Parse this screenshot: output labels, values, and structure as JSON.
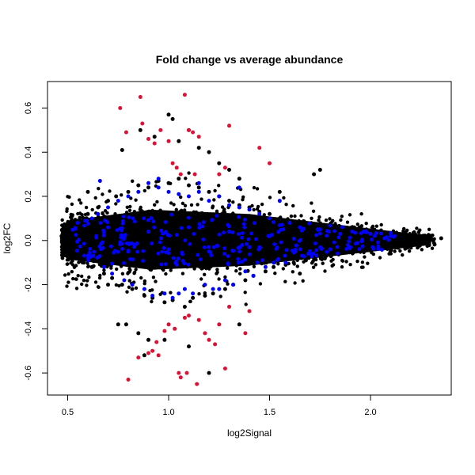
{
  "chart_data": {
    "type": "scatter",
    "title": "Fold change vs average abundance",
    "xlabel": "log2Signal",
    "ylabel": "log2FC",
    "xlim": [
      0.4,
      2.4
    ],
    "ylim": [
      -0.7,
      0.72
    ],
    "x_ticks": [
      0.5,
      1.0,
      1.5,
      2.0
    ],
    "x_tick_labels": [
      "0.5",
      "1.0",
      "1.5",
      "2.0"
    ],
    "y_ticks": [
      -0.6,
      -0.4,
      -0.2,
      0.0,
      0.2,
      0.4,
      0.6
    ],
    "y_tick_labels": [
      "-0.6",
      "-0.4",
      "-0.2",
      "0.0",
      "0.2",
      "0.4",
      "0.6"
    ],
    "grid": false,
    "series": [
      {
        "color": "#000000",
        "values_note_free": true,
        "x": [
          0.47,
          0.48,
          0.5,
          0.52,
          0.55,
          0.58,
          0.6,
          0.62,
          0.65,
          0.68,
          0.7,
          0.72,
          0.74,
          0.77,
          0.8,
          0.82,
          0.85,
          0.88,
          0.9,
          0.92,
          0.95,
          0.98,
          1.0,
          1.02,
          1.05,
          1.08,
          1.1,
          1.12,
          1.15,
          1.18,
          1.2,
          1.22,
          1.25,
          1.28,
          1.3,
          1.32,
          1.35,
          1.38,
          1.4,
          1.42,
          1.45,
          1.48,
          1.5,
          1.52,
          1.55,
          1.58,
          1.6,
          1.62,
          1.65,
          1.68,
          1.7,
          1.72,
          1.75,
          1.78,
          1.8,
          1.82,
          1.85,
          1.88,
          1.9,
          1.92,
          1.95,
          1.98,
          2.0,
          2.02,
          2.05,
          2.08,
          2.1,
          2.12,
          2.15,
          2.18,
          2.2,
          2.25,
          2.3,
          2.35,
          0.77,
          0.79,
          0.86,
          0.88,
          0.93,
          0.98,
          1.0,
          1.02,
          1.05,
          1.1,
          1.15,
          1.2,
          1.25,
          1.3,
          1.35,
          1.72,
          1.75,
          0.75,
          0.85,
          0.9,
          1.1,
          1.35,
          1.2,
          0.6,
          0.7,
          1.55,
          1.65
        ],
        "y": [
          0.02,
          -0.02,
          0.05,
          -0.06,
          0.09,
          -0.1,
          0.12,
          -0.12,
          0.15,
          -0.15,
          0.18,
          -0.17,
          0.2,
          -0.2,
          0.22,
          -0.22,
          0.25,
          -0.25,
          0.24,
          -0.26,
          0.27,
          -0.28,
          0.26,
          -0.27,
          0.28,
          -0.3,
          0.25,
          -0.26,
          0.24,
          -0.25,
          0.22,
          -0.24,
          0.2,
          -0.22,
          0.18,
          -0.2,
          0.16,
          -0.18,
          0.15,
          -0.16,
          0.13,
          -0.14,
          0.12,
          -0.12,
          0.1,
          -0.11,
          0.09,
          -0.1,
          0.08,
          -0.09,
          0.07,
          -0.08,
          0.06,
          -0.07,
          0.05,
          -0.06,
          0.05,
          -0.05,
          0.04,
          -0.04,
          0.04,
          -0.04,
          0.03,
          -0.03,
          0.03,
          -0.03,
          0.02,
          -0.02,
          0.02,
          -0.02,
          0.01,
          0.02,
          0.01,
          0.01,
          0.41,
          -0.38,
          0.5,
          -0.52,
          0.47,
          -0.45,
          0.57,
          0.55,
          0.45,
          0.5,
          0.42,
          0.4,
          0.35,
          0.32,
          0.28,
          0.3,
          0.32,
          -0.38,
          -0.42,
          -0.45,
          -0.48,
          -0.38,
          -0.6,
          0.22,
          -0.2,
          0.22,
          -0.15
        ]
      },
      {
        "color": "#0000ff",
        "x": [
          0.55,
          0.6,
          0.62,
          0.65,
          0.68,
          0.7,
          0.72,
          0.75,
          0.78,
          0.8,
          0.82,
          0.85,
          0.88,
          0.9,
          0.92,
          0.95,
          0.98,
          1.0,
          1.02,
          1.05,
          1.08,
          1.1,
          1.12,
          1.15,
          1.18,
          1.2,
          1.22,
          1.25,
          1.28,
          1.3,
          1.32,
          1.35,
          1.38,
          1.4,
          1.42,
          1.45,
          1.48,
          1.5,
          1.52,
          1.55,
          1.58,
          1.6,
          1.65,
          1.7,
          1.75,
          1.8,
          1.85,
          1.9,
          2.0,
          2.1,
          0.7,
          0.8,
          0.9,
          1.0,
          1.1,
          1.2,
          1.3,
          1.4,
          1.5,
          0.66,
          0.95,
          1.05,
          1.15,
          1.25,
          1.35
        ],
        "y": [
          0.08,
          -0.08,
          0.1,
          0.12,
          -0.12,
          0.15,
          -0.15,
          0.18,
          -0.18,
          0.2,
          -0.2,
          0.22,
          -0.22,
          0.26,
          -0.25,
          0.24,
          -0.24,
          0.22,
          -0.26,
          0.21,
          -0.22,
          0.2,
          -0.24,
          0.22,
          -0.2,
          0.18,
          -0.22,
          0.2,
          -0.18,
          0.16,
          -0.2,
          0.15,
          -0.14,
          0.14,
          -0.16,
          0.12,
          -0.12,
          0.1,
          -0.1,
          0.18,
          -0.1,
          0.08,
          0.06,
          -0.06,
          0.05,
          -0.04,
          0.03,
          -0.03,
          0.03,
          0.02,
          0.06,
          -0.05,
          0.04,
          -0.04,
          0.06,
          -0.05,
          0.04,
          -0.03,
          0.02,
          0.27,
          0.28,
          -0.24,
          0.26,
          -0.22,
          0.24
        ]
      },
      {
        "color": "#dd1133",
        "x": [
          0.76,
          0.86,
          0.79,
          0.87,
          0.9,
          0.93,
          0.96,
          1.0,
          1.08,
          1.1,
          1.12,
          1.15,
          1.02,
          1.04,
          1.06,
          1.25,
          1.28,
          1.3,
          1.45,
          1.5,
          1.13,
          1.08,
          1.03,
          0.94,
          0.8,
          0.85,
          0.9,
          1.0,
          1.05,
          1.1,
          1.18,
          1.2,
          1.25,
          1.28,
          1.3,
          1.38,
          1.4,
          1.06,
          1.09,
          1.14,
          1.23,
          0.92,
          0.95,
          0.98,
          1.15
        ],
        "y": [
          0.6,
          0.65,
          0.49,
          0.53,
          0.46,
          0.44,
          0.5,
          0.45,
          0.66,
          0.5,
          0.49,
          0.47,
          0.35,
          0.33,
          0.3,
          0.3,
          0.33,
          0.52,
          0.42,
          0.35,
          0.3,
          -0.35,
          -0.4,
          -0.46,
          -0.63,
          -0.53,
          -0.51,
          -0.38,
          -0.6,
          -0.34,
          -0.42,
          -0.45,
          -0.38,
          -0.58,
          -0.3,
          -0.42,
          -0.32,
          -0.62,
          -0.6,
          -0.65,
          -0.47,
          -0.5,
          -0.52,
          -0.41,
          -0.36
        ]
      }
    ]
  }
}
